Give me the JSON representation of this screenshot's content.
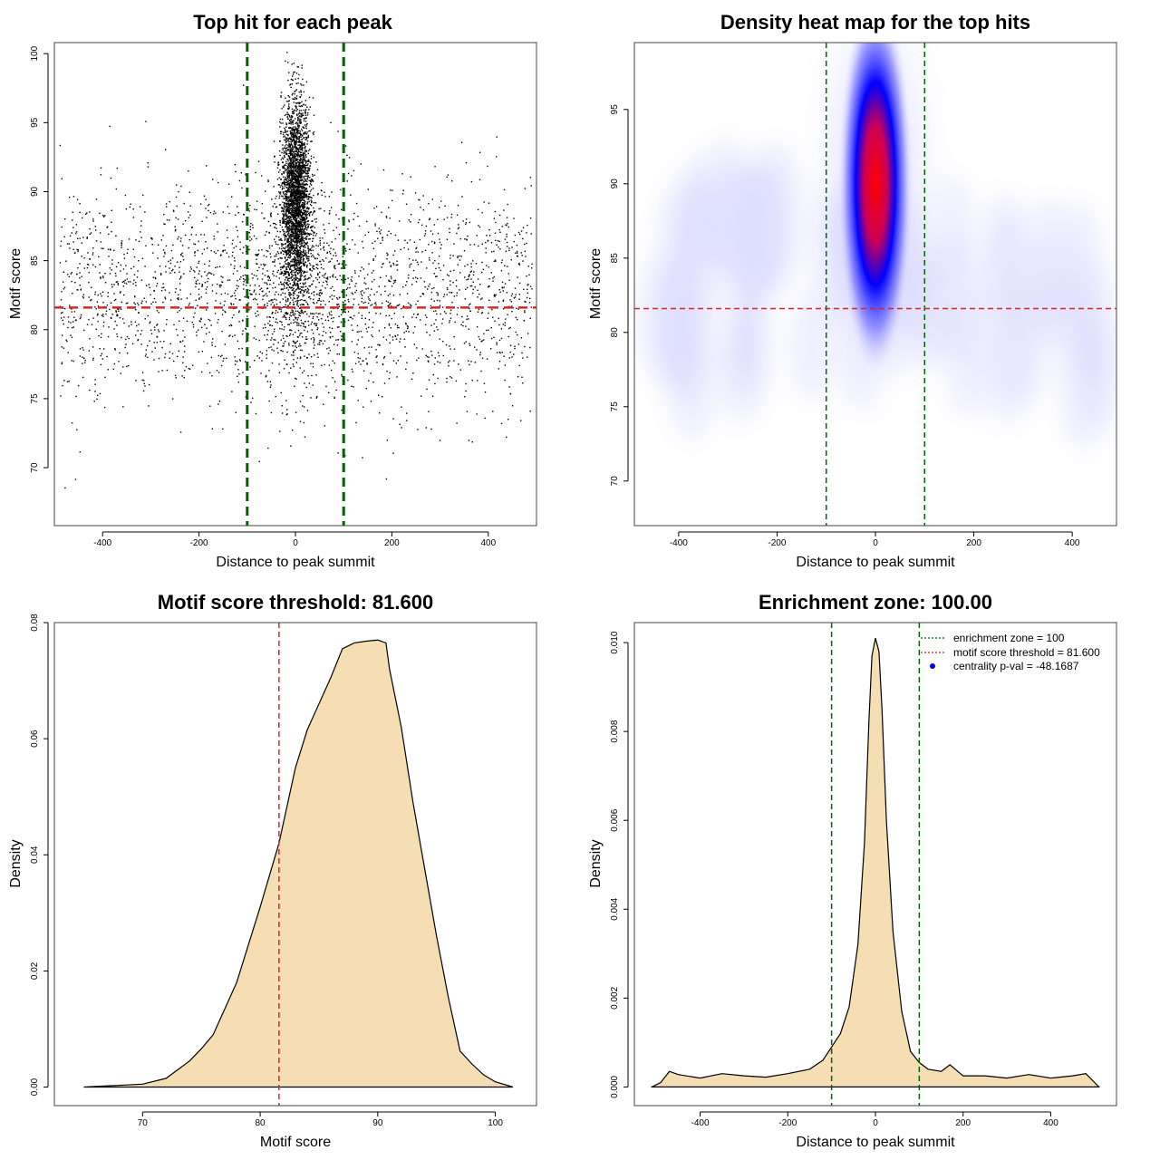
{
  "colors": {
    "threshold": "#d62728",
    "zone": "#006400",
    "fill": "#f5deb3",
    "points": "#000000",
    "heat_low": "#ffffff",
    "heat_mid": "#0000ff",
    "heat_high": "#ff0000"
  },
  "chart_data": [
    {
      "type": "scatter",
      "title": "Top hit for each peak",
      "xlabel": "Distance to peak summit",
      "ylabel": "Motif score",
      "xlim": [
        -500,
        500
      ],
      "ylim": [
        65.8,
        100.8
      ],
      "xticks": [
        -400,
        -200,
        0,
        200,
        400
      ],
      "yticks": [
        70,
        75,
        80,
        85,
        90,
        95,
        100
      ],
      "hline": 81.6,
      "vlines": [
        -100,
        100
      ],
      "point_summary": {
        "background_x_range": [
          -490,
          490
        ],
        "background_y_center": 82.5,
        "background_y_sd": 4,
        "central_x_sd": 15,
        "central_y_center": 89.5,
        "central_y_sd": 3.5
      }
    },
    {
      "type": "heatmap",
      "title": "Density heat map for the top hits",
      "xlabel": "Distance to peak summit",
      "ylabel": "Motif score",
      "xlim": [
        -490,
        490
      ],
      "ylim": [
        67,
        99.5
      ],
      "xticks": [
        -400,
        -200,
        0,
        200,
        400
      ],
      "yticks": [
        70,
        75,
        80,
        85,
        90,
        95
      ],
      "hline": 81.6,
      "vlines": [
        -100,
        100
      ],
      "peak": {
        "x": 0,
        "y": 90
      }
    },
    {
      "type": "area",
      "title": "Motif score threshold: 81.600",
      "xlabel": "Motif score",
      "ylabel": "Density",
      "xlim": [
        62.5,
        103.5
      ],
      "ylim": [
        -0.0032,
        0.08
      ],
      "xticks": [
        70,
        80,
        90,
        100
      ],
      "yticks": [
        0.0,
        0.02,
        0.04,
        0.06,
        0.08
      ],
      "ytick_labels": [
        "0.00",
        "0.02",
        "0.04",
        "0.06",
        "0.08"
      ],
      "vline": 81.6,
      "x": [
        65,
        70,
        72,
        74,
        75,
        76,
        78,
        80,
        81.6,
        83,
        84,
        85,
        86,
        87,
        88,
        89,
        90,
        90.7,
        91,
        92,
        93,
        95,
        96,
        97,
        98,
        99,
        100,
        101.5
      ],
      "y": [
        0.0,
        0.0005,
        0.0015,
        0.0045,
        0.0066,
        0.009,
        0.018,
        0.031,
        0.042,
        0.055,
        0.0615,
        0.066,
        0.0705,
        0.0755,
        0.0765,
        0.0768,
        0.077,
        0.0765,
        0.072,
        0.062,
        0.049,
        0.026,
        0.0155,
        0.0062,
        0.004,
        0.0021,
        0.0009,
        0.0
      ]
    },
    {
      "type": "area",
      "title": "Enrichment zone: 100.00",
      "xlabel": "Distance to peak summit",
      "ylabel": "Density",
      "xlim": [
        -550,
        550
      ],
      "ylim": [
        -0.00042,
        0.01045
      ],
      "xticks": [
        -400,
        -200,
        0,
        200,
        400
      ],
      "yticks": [
        0.0,
        0.002,
        0.004,
        0.006,
        0.008,
        0.01
      ],
      "ytick_labels": [
        "0.000",
        "0.002",
        "0.004",
        "0.006",
        "0.008",
        "0.010"
      ],
      "vlines": [
        -100,
        100
      ],
      "x": [
        -510,
        -490,
        -470,
        -450,
        -400,
        -350,
        -300,
        -250,
        -200,
        -150,
        -120,
        -100,
        -80,
        -60,
        -40,
        -25,
        -15,
        -8,
        0,
        8,
        15,
        25,
        40,
        60,
        80,
        100,
        120,
        150,
        170,
        200,
        250,
        300,
        350,
        400,
        450,
        480,
        500,
        510
      ],
      "y": [
        0.0,
        0.0001,
        0.00035,
        0.00028,
        0.0002,
        0.0003,
        0.00025,
        0.00022,
        0.0003,
        0.0004,
        0.0006,
        0.0009,
        0.0012,
        0.0018,
        0.0032,
        0.0055,
        0.0082,
        0.0097,
        0.0101,
        0.0098,
        0.0085,
        0.006,
        0.0035,
        0.0017,
        0.0008,
        0.00055,
        0.0004,
        0.00035,
        0.0005,
        0.00025,
        0.00025,
        0.0002,
        0.00028,
        0.0002,
        0.00025,
        0.0003,
        0.0001,
        0.0
      ],
      "legend": {
        "position": "top-right",
        "entries": [
          {
            "label": "enrichment zone = 100",
            "style": "dotted-line",
            "color": "#006400"
          },
          {
            "label": "motif score threshold = 81.600",
            "style": "dotted-line",
            "color": "#d62728"
          },
          {
            "label": "centrality p-val = -48.1687",
            "style": "point",
            "color": "#0000ff"
          }
        ]
      }
    }
  ]
}
